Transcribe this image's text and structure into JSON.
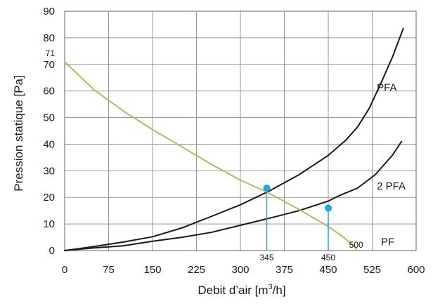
{
  "chart_data": {
    "type": "line",
    "xlabel_main": "Debit d’air [m",
    "xlabel_sup": "3",
    "xlabel_end": "/h]",
    "ylabel": "Pression statique [Pa]",
    "xlim": [
      0,
      600
    ],
    "ylim": [
      0,
      90
    ],
    "grid": true,
    "x_ticks": [
      0,
      75,
      150,
      225,
      300,
      375,
      450,
      525,
      600
    ],
    "y_ticks": [
      0,
      10,
      20,
      30,
      40,
      50,
      60,
      70,
      80,
      90
    ],
    "x_tick_labels": [
      "0",
      "75",
      "150",
      "225",
      "300",
      "375",
      "450",
      "525",
      "600"
    ],
    "y_tick_labels": [
      "0",
      "10",
      "20",
      "30",
      "40",
      "50",
      "60",
      "70",
      "80",
      "90"
    ],
    "series": [
      {
        "name": "PFA",
        "color": "#1a1a1a",
        "x": [
          0,
          50,
          100,
          150,
          200,
          250,
          300,
          350,
          400,
          450,
          480,
          500,
          520,
          540,
          560,
          578
        ],
        "y": [
          0,
          1.5,
          3.2,
          5.2,
          8.5,
          12.8,
          17.2,
          22.5,
          28.5,
          35.8,
          41.5,
          46.5,
          53.5,
          63,
          73,
          83.5
        ]
      },
      {
        "name": "2 PFA",
        "color": "#1a1a1a",
        "x": [
          0,
          50,
          100,
          150,
          200,
          250,
          300,
          350,
          400,
          450,
          470,
          500,
          530,
          560,
          575
        ],
        "y": [
          0,
          1.0,
          1.8,
          3.5,
          5.0,
          6.8,
          9.5,
          12.2,
          15.0,
          18.6,
          20.8,
          23.5,
          28.5,
          36,
          41
        ]
      },
      {
        "name": "PF",
        "color": "#b7b766",
        "x": [
          0,
          50,
          100,
          150,
          200,
          250,
          300,
          345,
          400,
          450,
          470,
          490,
          500
        ],
        "y": [
          71,
          60.5,
          52.5,
          45.5,
          39.0,
          32.5,
          26.5,
          22.0,
          15.5,
          9.0,
          6.0,
          2.5,
          0
        ]
      }
    ],
    "operating_points": [
      {
        "x": 345,
        "y": 23.5,
        "label": "345"
      },
      {
        "x": 450,
        "y": 16,
        "label": "450"
      }
    ],
    "annotations": [
      {
        "text": "71",
        "x": 0,
        "y": 71
      },
      {
        "text": "500",
        "x": 500,
        "y": 0
      }
    ],
    "point_color": "#1ea7e1",
    "grid_color": "#999999"
  }
}
